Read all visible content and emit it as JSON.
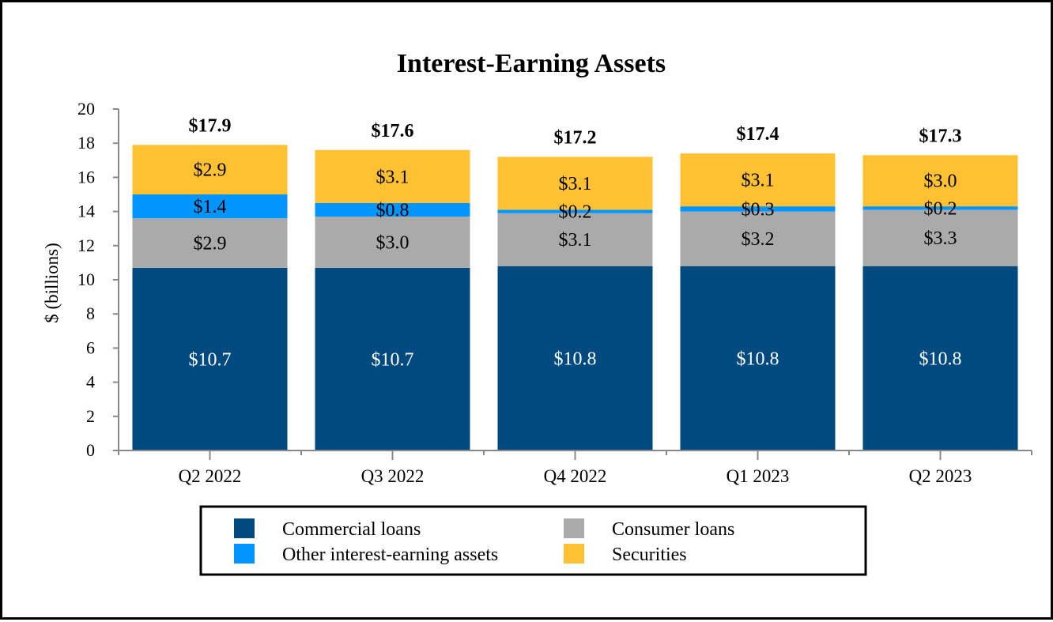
{
  "chart_data": {
    "type": "bar",
    "stacked": true,
    "title": "Interest-Earning Assets",
    "xlabel": "",
    "ylabel": "$ (billions)",
    "ylim": [
      0,
      20
    ],
    "yticks": [
      0,
      2,
      4,
      6,
      8,
      10,
      12,
      14,
      16,
      18,
      20
    ],
    "grid": false,
    "legend_position": "bottom",
    "categories": [
      "Q2 2022",
      "Q3 2022",
      "Q4 2022",
      "Q1 2023",
      "Q2 2023"
    ],
    "series": [
      {
        "name": "Commercial loans",
        "color": "#004A7F",
        "label_color": "#FFFFFF",
        "values": [
          10.7,
          10.7,
          10.8,
          10.8,
          10.8
        ],
        "labels": [
          "$10.7",
          "$10.7",
          "$10.8",
          "$10.8",
          "$10.8"
        ]
      },
      {
        "name": "Consumer loans",
        "color": "#AAAAAA",
        "label_color": "#000000",
        "values": [
          2.9,
          3.0,
          3.1,
          3.2,
          3.3
        ],
        "labels": [
          "$2.9",
          "$3.0",
          "$3.1",
          "$3.2",
          "$3.3"
        ]
      },
      {
        "name": "Other interest-earning assets",
        "color": "#0095FF",
        "label_color": "#000000",
        "values": [
          1.4,
          0.8,
          0.2,
          0.3,
          0.2
        ],
        "labels": [
          "$1.4",
          "$0.8",
          "$0.2",
          "$0.3",
          "$0.2"
        ]
      },
      {
        "name": "Securities",
        "color": "#FFC132",
        "label_color": "#000000",
        "values": [
          2.9,
          3.1,
          3.1,
          3.1,
          3.0
        ],
        "labels": [
          "$2.9",
          "$3.1",
          "$3.1",
          "$3.1",
          "$3.0"
        ]
      }
    ],
    "totals": [
      17.9,
      17.6,
      17.2,
      17.4,
      17.3
    ],
    "total_labels": [
      "$17.9",
      "$17.6",
      "$17.2",
      "$17.4",
      "$17.3"
    ],
    "legend": [
      {
        "name": "Commercial loans",
        "color": "#004A7F"
      },
      {
        "name": "Consumer loans",
        "color": "#AAAAAA"
      },
      {
        "name": "Other interest-earning assets",
        "color": "#0095FF"
      },
      {
        "name": "Securities",
        "color": "#FFC132"
      }
    ]
  }
}
